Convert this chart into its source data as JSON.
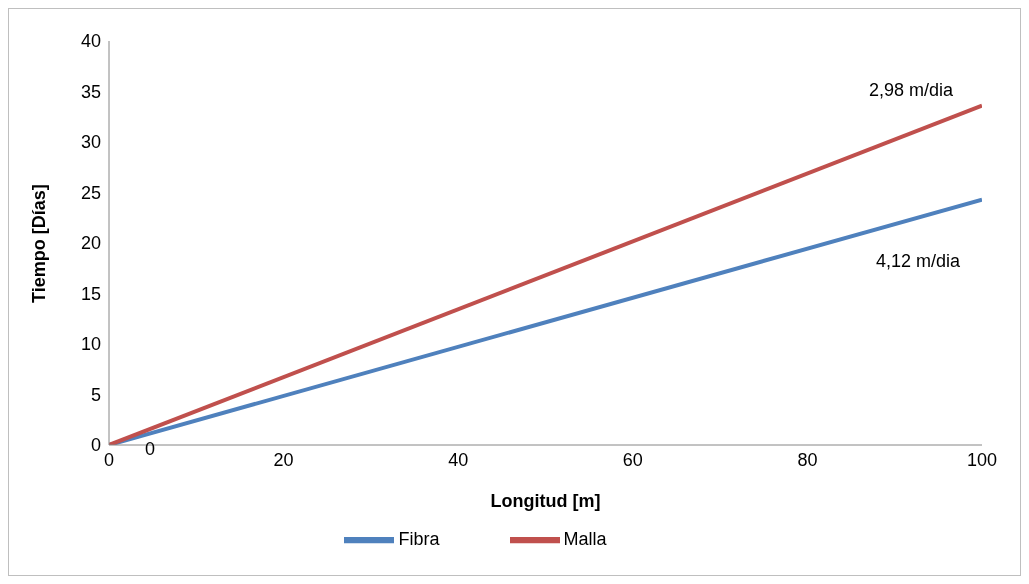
{
  "chart_data": {
    "type": "line",
    "xlabel": "Longitud [m]",
    "ylabel": "Tiempo [Días]",
    "x": [
      0,
      100
    ],
    "series": [
      {
        "name": "Fibra",
        "color": "#4f81bd",
        "values": [
          0,
          24.3
        ]
      },
      {
        "name": "Malla",
        "color": "#c0504d",
        "values": [
          0,
          33.6
        ]
      }
    ],
    "xlim": [
      0,
      100
    ],
    "xticks": [
      0,
      20,
      40,
      60,
      80,
      100
    ],
    "ylim": [
      0,
      40
    ],
    "yticks": [
      0,
      5,
      10,
      15,
      20,
      25,
      30,
      35,
      40
    ],
    "annotations": [
      "2,98 m/dia",
      "4,12 m/dia",
      "0"
    ],
    "legend": "bottom",
    "marker": "none",
    "line_style": "solid",
    "grid": false
  }
}
